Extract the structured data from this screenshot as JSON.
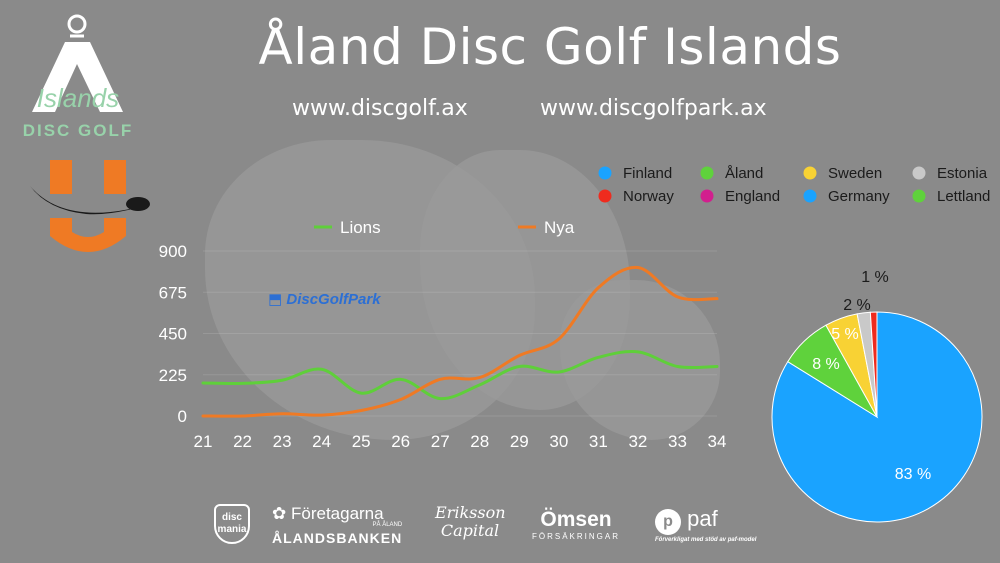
{
  "header": {
    "title": "Åland Disc Golf Islands",
    "url_left": "www.discgolf.ax",
    "url_right": "www.discgolfpark.ax"
  },
  "logos": {
    "islands_text": "Islands",
    "disc_golf_text": "DISC GOLF",
    "discgolfpark_text": "DiscGolfPark"
  },
  "sponsors": {
    "disc_mania": "disc mania",
    "foretagarna": "Företagarna",
    "foretagarna_sub": "PÅ ÅLAND",
    "alandsbanken": "ÅLANDSBANKEN",
    "eriksson": "Eriksson Capital",
    "omsen": "Ömsen",
    "omsen_sub": "FÖRSÄKRINGAR",
    "paf": "paf",
    "paf_sub": "Förverkligat med stöd av paf-model"
  },
  "colors": {
    "lions": "#5fcf3a",
    "nya": "#ef7a24",
    "finland": "#1aa3ff",
    "aland": "#5fd23c",
    "sweden": "#f8d234",
    "estonia": "#c9c9c9",
    "norway": "#ef2b1e",
    "england": "#d21f8e",
    "germany": "#1aa3ff",
    "lettland": "#5fd23c"
  },
  "chart_data": [
    {
      "type": "line",
      "title": "",
      "xlabel": "",
      "ylabel": "",
      "x": [
        21,
        22,
        23,
        24,
        25,
        26,
        27,
        28,
        29,
        30,
        31,
        32,
        33,
        34
      ],
      "ylim": [
        0,
        900
      ],
      "yticks": [
        0,
        225,
        450,
        675,
        900
      ],
      "series": [
        {
          "name": "Lions",
          "color": "#5fcf3a",
          "values": [
            180,
            178,
            195,
            255,
            125,
            200,
            95,
            170,
            270,
            240,
            320,
            350,
            270,
            270
          ]
        },
        {
          "name": "Nya",
          "color": "#ef7a24",
          "values": [
            0,
            0,
            12,
            5,
            30,
            90,
            200,
            210,
            330,
            420,
            700,
            810,
            650,
            640
          ]
        }
      ],
      "legend": "top"
    },
    {
      "type": "pie",
      "title": "",
      "legend": "top-right",
      "legend_entries": [
        {
          "name": "Finland",
          "color": "#1aa3ff"
        },
        {
          "name": "Åland",
          "color": "#5fd23c"
        },
        {
          "name": "Sweden",
          "color": "#f8d234"
        },
        {
          "name": "Estonia",
          "color": "#c9c9c9"
        },
        {
          "name": "Norway",
          "color": "#ef2b1e"
        },
        {
          "name": "England",
          "color": "#d21f8e"
        },
        {
          "name": "Germany",
          "color": "#1aa3ff"
        },
        {
          "name": "Lettland",
          "color": "#5fd23c"
        }
      ],
      "slices": [
        {
          "name": "Finland",
          "value": 83,
          "label": "83 %",
          "color": "#1aa3ff"
        },
        {
          "name": "Åland",
          "value": 8,
          "label": "8 %",
          "color": "#5fd23c"
        },
        {
          "name": "Sweden",
          "value": 5,
          "label": "5 %",
          "color": "#f8d234"
        },
        {
          "name": "Estonia",
          "value": 2,
          "label": "2 %",
          "color": "#c9c9c9"
        },
        {
          "name": "Norway",
          "value": 1,
          "label": "1 %",
          "color": "#ef2b1e"
        }
      ]
    }
  ]
}
